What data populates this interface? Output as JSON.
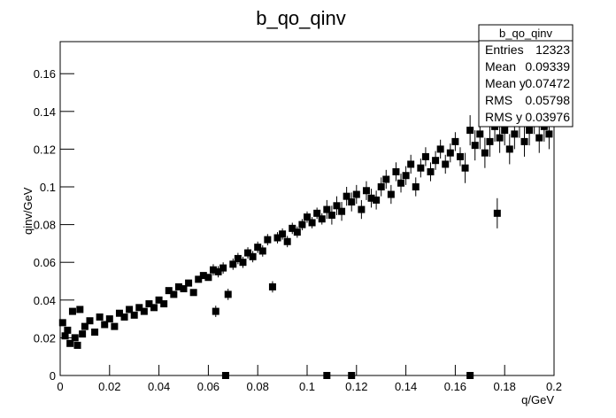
{
  "chart_data": {
    "type": "scatter",
    "title": "b_qo_qinv",
    "x_label": "q/GeV",
    "y_label": "qinv/GeV",
    "color": "#000000",
    "xlim": [
      0,
      0.2
    ],
    "ylim": [
      0,
      0.177
    ],
    "xticks": [
      0,
      0.02,
      0.04,
      0.06,
      0.08,
      0.1,
      0.12,
      0.14,
      0.16,
      0.18,
      0.2
    ],
    "yticks": [
      0,
      0.02,
      0.04,
      0.06,
      0.08,
      0.1,
      0.12,
      0.14,
      0.16
    ],
    "x": [
      0.001,
      0.002,
      0.003,
      0.004,
      0.005,
      0.006,
      0.007,
      0.008,
      0.009,
      0.01,
      0.012,
      0.014,
      0.016,
      0.018,
      0.02,
      0.022,
      0.024,
      0.026,
      0.028,
      0.03,
      0.032,
      0.034,
      0.036,
      0.038,
      0.04,
      0.042,
      0.044,
      0.046,
      0.048,
      0.05,
      0.052,
      0.054,
      0.056,
      0.058,
      0.06,
      0.062,
      0.063,
      0.064,
      0.066,
      0.067,
      0.068,
      0.07,
      0.072,
      0.074,
      0.076,
      0.078,
      0.08,
      0.082,
      0.084,
      0.086,
      0.088,
      0.09,
      0.092,
      0.094,
      0.096,
      0.098,
      0.1,
      0.102,
      0.104,
      0.106,
      0.108,
      0.108,
      0.11,
      0.112,
      0.114,
      0.116,
      0.118,
      0.118,
      0.12,
      0.122,
      0.124,
      0.126,
      0.128,
      0.13,
      0.132,
      0.134,
      0.136,
      0.138,
      0.14,
      0.142,
      0.144,
      0.146,
      0.148,
      0.15,
      0.152,
      0.154,
      0.156,
      0.158,
      0.16,
      0.162,
      0.164,
      0.166,
      0.166,
      0.168,
      0.17,
      0.172,
      0.174,
      0.176,
      0.177,
      0.178,
      0.18,
      0.182,
      0.184,
      0.186,
      0.188,
      0.19,
      0.192,
      0.194,
      0.196,
      0.198
    ],
    "values": [
      0.028,
      0.021,
      0.024,
      0.017,
      0.034,
      0.02,
      0.016,
      0.035,
      0.022,
      0.026,
      0.029,
      0.023,
      0.031,
      0.027,
      0.03,
      0.026,
      0.033,
      0.031,
      0.035,
      0.032,
      0.036,
      0.034,
      0.038,
      0.036,
      0.04,
      0.038,
      0.045,
      0.043,
      0.047,
      0.046,
      0.049,
      0.044,
      0.051,
      0.053,
      0.052,
      0.056,
      0.034,
      0.055,
      0.057,
      0.0,
      0.043,
      0.059,
      0.062,
      0.06,
      0.065,
      0.063,
      0.068,
      0.066,
      0.072,
      0.047,
      0.073,
      0.075,
      0.071,
      0.078,
      0.076,
      0.08,
      0.084,
      0.081,
      0.086,
      0.083,
      0.0,
      0.088,
      0.085,
      0.09,
      0.087,
      0.095,
      0.0,
      0.092,
      0.096,
      0.088,
      0.098,
      0.094,
      0.093,
      0.1,
      0.104,
      0.096,
      0.108,
      0.102,
      0.106,
      0.112,
      0.1,
      0.11,
      0.116,
      0.108,
      0.114,
      0.12,
      0.112,
      0.118,
      0.124,
      0.116,
      0.11,
      0.0,
      0.13,
      0.122,
      0.128,
      0.118,
      0.124,
      0.132,
      0.086,
      0.126,
      0.13,
      0.12,
      0.128,
      0.134,
      0.124,
      0.13,
      0.136,
      0.126,
      0.132,
      0.128
    ],
    "errors": [
      0.001,
      0.001,
      0.001,
      0.001,
      0.001,
      0.001,
      0.001,
      0.001,
      0.001,
      0.001,
      0.001,
      0.001,
      0.001,
      0.001,
      0.001,
      0.001,
      0.001,
      0.001,
      0.001,
      0.001,
      0.001,
      0.001,
      0.001,
      0.001,
      0.001,
      0.001,
      0.001,
      0.001,
      0.001,
      0.001,
      0.001,
      0.001,
      0.001,
      0.001,
      0.001,
      0.003,
      0.003,
      0.003,
      0.003,
      0,
      0.003,
      0.003,
      0.003,
      0.003,
      0.003,
      0.003,
      0.003,
      0.003,
      0.003,
      0.003,
      0.003,
      0.003,
      0.003,
      0.003,
      0.003,
      0.003,
      0.003,
      0.003,
      0.003,
      0.003,
      0,
      0.005,
      0.005,
      0.005,
      0.005,
      0.005,
      0,
      0.005,
      0.005,
      0.005,
      0.005,
      0.005,
      0.005,
      0.005,
      0.005,
      0.005,
      0.005,
      0.005,
      0.005,
      0.005,
      0.005,
      0.005,
      0.005,
      0.005,
      0.005,
      0.005,
      0.005,
      0.005,
      0.005,
      0.005,
      0.008,
      0,
      0.008,
      0.008,
      0.008,
      0.008,
      0.008,
      0.008,
      0.008,
      0.008,
      0.008,
      0.008,
      0.008,
      0.008,
      0.008,
      0.008,
      0.008,
      0.008,
      0.008,
      0.008
    ],
    "stats": {
      "title": "b_qo_qinv",
      "rows": [
        [
          "Entries",
          12323
        ],
        [
          "Mean",
          0.09339
        ],
        [
          "Mean y",
          0.07472
        ],
        [
          "RMS",
          0.05798
        ],
        [
          "RMS y",
          0.03976
        ]
      ]
    }
  }
}
